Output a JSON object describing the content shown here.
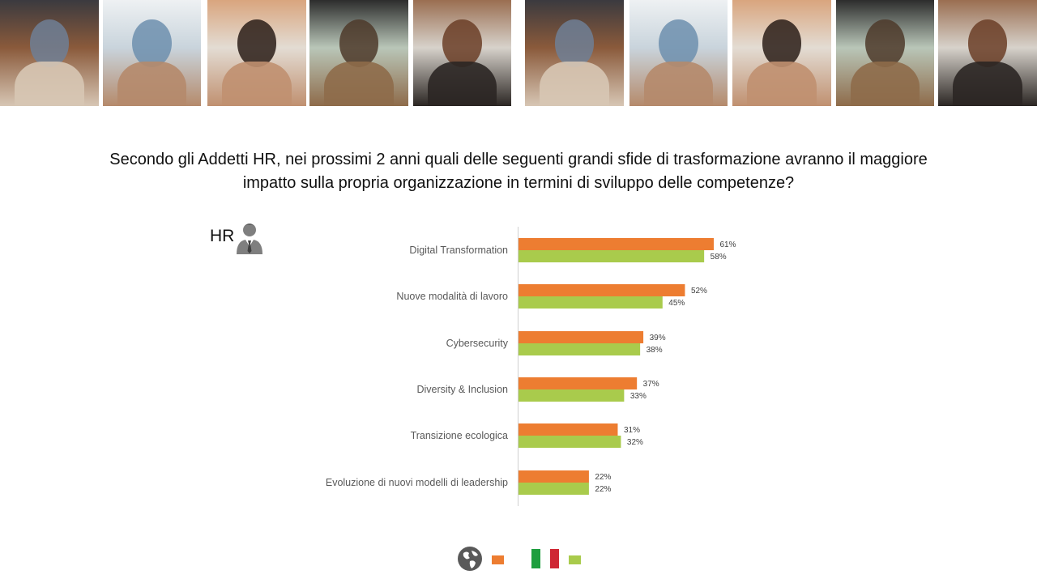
{
  "photos": [
    {
      "name": "team-photo-1",
      "colors": [
        "#8a5a3b",
        "#6e7f95",
        "#d7c6b4",
        "#3b3a3f"
      ]
    },
    {
      "name": "meeting-photo",
      "colors": [
        "#c9d4dc",
        "#6d8fae",
        "#b58a6b",
        "#eef1f3"
      ]
    },
    {
      "name": "woman-portrait-photo",
      "colors": [
        "#e3dcd3",
        "#2a1d17",
        "#c09070",
        "#d9a57e"
      ]
    },
    {
      "name": "office-photo",
      "colors": [
        "#b9c6b8",
        "#4e3a2a",
        "#8e6b4a",
        "#2d2d2d"
      ]
    },
    {
      "name": "team-laptop-photo",
      "colors": [
        "#d7d2cb",
        "#6b3e27",
        "#2b2623",
        "#9a6e51"
      ]
    },
    {
      "name": "team-photo-2",
      "colors": [
        "#8a5a3b",
        "#6e7f95",
        "#d7c6b4",
        "#3b3a3f"
      ]
    },
    {
      "name": "meeting-photo-2",
      "colors": [
        "#c9d4dc",
        "#6d8fae",
        "#b58a6b",
        "#eef1f3"
      ]
    },
    {
      "name": "woman-portrait-photo-2",
      "colors": [
        "#e3dcd3",
        "#2a1d17",
        "#c09070",
        "#d9a57e"
      ]
    },
    {
      "name": "office-photo-2",
      "colors": [
        "#b9c6b8",
        "#4e3a2a",
        "#8e6b4a",
        "#2d2d2d"
      ]
    },
    {
      "name": "team-laptop-photo-2",
      "colors": [
        "#d7d2cb",
        "#6b3e27",
        "#2b2623",
        "#9a6e51"
      ]
    }
  ],
  "headline": {
    "line1": "Secondo gli Addetti HR, nei prossimi 2 anni quali delle seguenti grandi sfide di trasformazione avranno il maggiore",
    "line2": "impatto sulla propria organizzazione in termini di sviluppo delle competenze?"
  },
  "segment": {
    "label": "HR",
    "icon": "businessman-icon"
  },
  "colors": {
    "global": "#ED7D31",
    "italy": "#A9CB4C",
    "axis": "#d0d0d0",
    "text": "#595959"
  },
  "chart_data": {
    "type": "bar",
    "orientation": "horizontal",
    "categories": [
      "Digital Transformation",
      "Nuove modalità di lavoro",
      "Cybersecurity",
      "Diversity & Inclusion",
      "Transizione ecologica",
      "Evoluzione di nuovi modelli di leadership"
    ],
    "series": [
      {
        "icon": "globe-icon",
        "color": "#ED7D31",
        "values": [
          61,
          52,
          39,
          37,
          31,
          22
        ],
        "labels": [
          "61%",
          "52%",
          "39%",
          "37%",
          "31%",
          "22%"
        ]
      },
      {
        "icon": "italy-flag-icon",
        "color": "#A9CB4C",
        "values": [
          58,
          45,
          38,
          33,
          32,
          22
        ],
        "labels": [
          "58%",
          "45%",
          "38%",
          "33%",
          "32%",
          "22%"
        ]
      }
    ],
    "xlim": [
      0,
      100
    ],
    "legend": "bottom-center",
    "grid": false
  }
}
